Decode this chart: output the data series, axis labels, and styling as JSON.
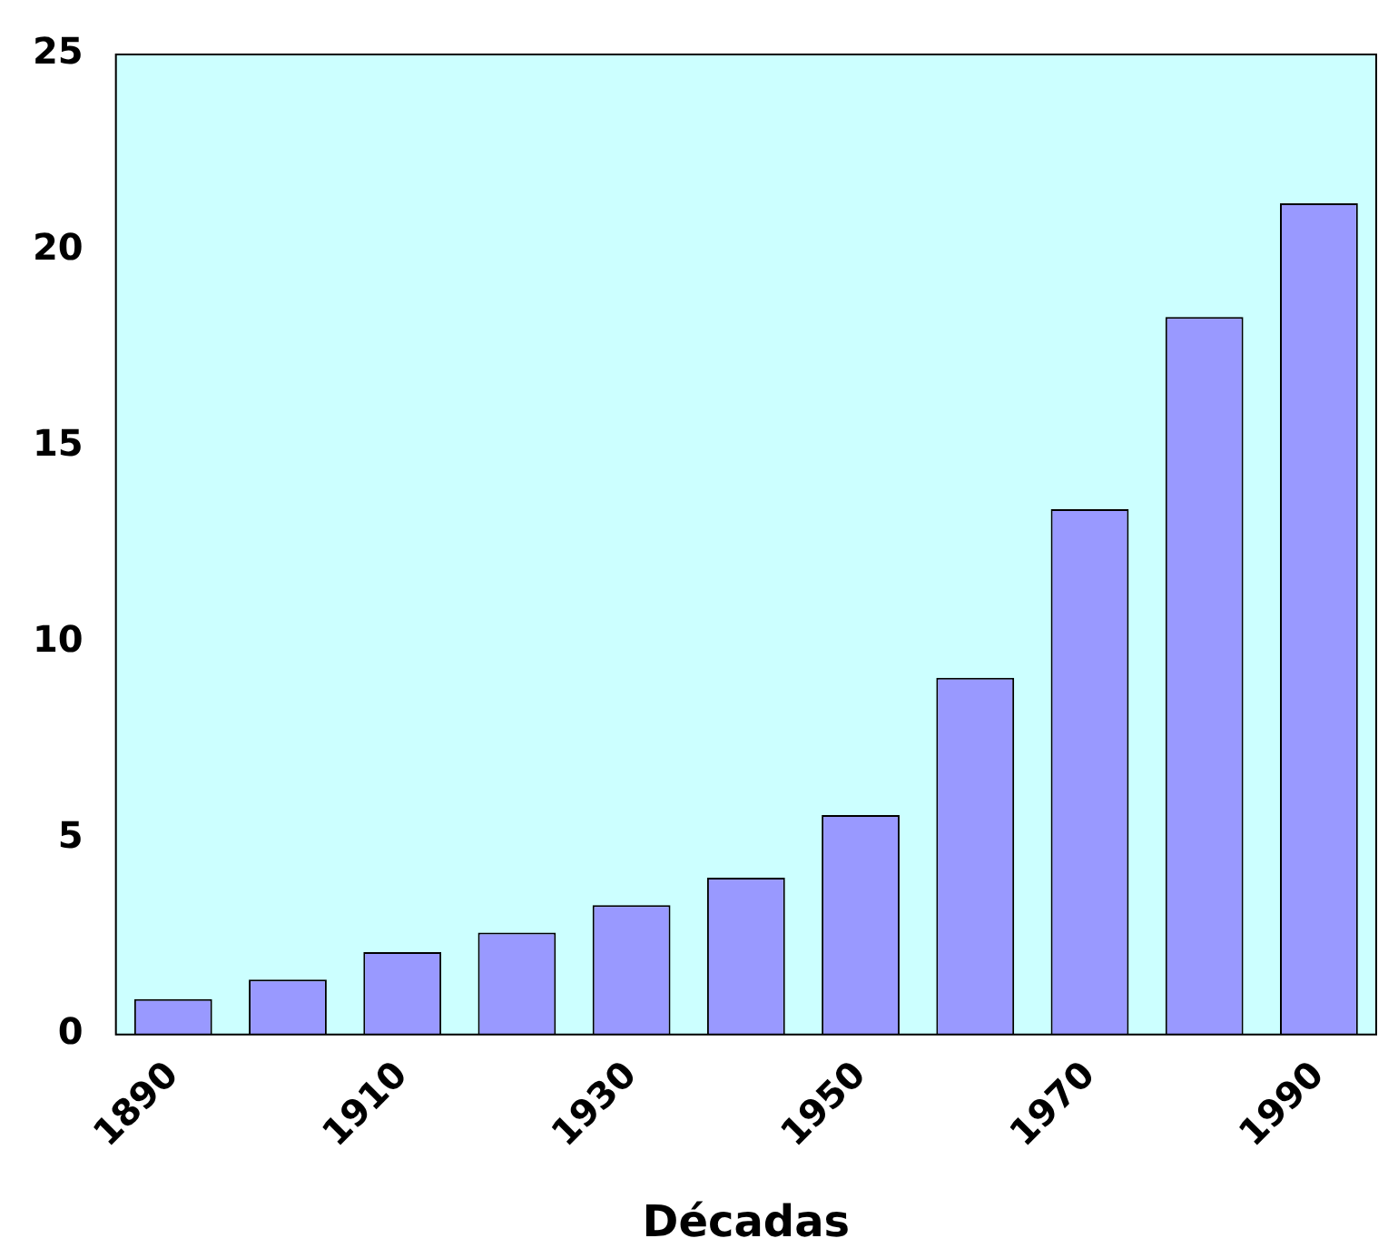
{
  "chart_data": {
    "type": "bar",
    "xlabel": "Décadas",
    "categories": [
      "1890",
      null,
      "1910",
      null,
      "1930",
      null,
      "1950",
      null,
      "1970",
      null,
      "1990"
    ],
    "values": [
      0.9,
      1.4,
      2.1,
      2.6,
      3.3,
      4.0,
      5.6,
      9.1,
      13.4,
      18.3,
      21.2
    ],
    "color": "#9999ff",
    "ylim": [
      0,
      25
    ],
    "yticks": [
      0,
      5,
      10,
      15,
      20,
      25
    ],
    "grid": false,
    "legend": false
  }
}
